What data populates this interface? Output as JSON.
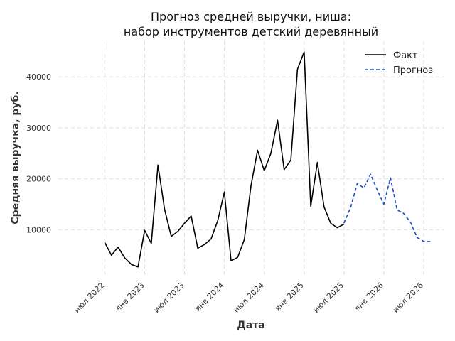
{
  "chart_data": {
    "type": "line",
    "title_line1": "Прогноз средней выручки, ниша:",
    "title_line2": "набор инструментов детский деревянный",
    "xlabel": "Дата",
    "ylabel": "Средняя выручка, руб.",
    "ylim": [
      1000,
      47000
    ],
    "xlim": [
      "2021-12",
      "2026-10"
    ],
    "grid": true,
    "legend_position": "top-right",
    "y_ticks": [
      10000,
      20000,
      30000,
      40000
    ],
    "x_ticks": [
      {
        "date": "2022-07",
        "label": "июл 2022"
      },
      {
        "date": "2023-01",
        "label": "янв 2023"
      },
      {
        "date": "2023-07",
        "label": "июл 2023"
      },
      {
        "date": "2024-01",
        "label": "янв 2024"
      },
      {
        "date": "2024-07",
        "label": "июл 2024"
      },
      {
        "date": "2025-01",
        "label": "янв 2025"
      },
      {
        "date": "2025-07",
        "label": "июл 2025"
      },
      {
        "date": "2026-01",
        "label": "янв 2026"
      },
      {
        "date": "2026-07",
        "label": "июл 2026"
      }
    ],
    "series": [
      {
        "name": "Факт",
        "color": "#000000",
        "style": "solid",
        "x": [
          "2022-07",
          "2022-08",
          "2022-09",
          "2022-10",
          "2022-11",
          "2022-12",
          "2023-01",
          "2023-02",
          "2023-03",
          "2023-04",
          "2023-05",
          "2023-06",
          "2023-07",
          "2023-08",
          "2023-09",
          "2023-10",
          "2023-11",
          "2023-12",
          "2024-01",
          "2024-02",
          "2024-03",
          "2024-04",
          "2024-05",
          "2024-06",
          "2024-07",
          "2024-08",
          "2024-09",
          "2024-10",
          "2024-11",
          "2024-12",
          "2025-01",
          "2025-02",
          "2025-03",
          "2025-04",
          "2025-05",
          "2025-06",
          "2025-07"
        ],
        "y": [
          7500,
          5000,
          6600,
          4500,
          3200,
          2700,
          9900,
          7300,
          22700,
          14000,
          8700,
          9700,
          11300,
          12700,
          6400,
          7100,
          8200,
          11800,
          17400,
          3900,
          4600,
          8100,
          18600,
          25600,
          21600,
          25000,
          31500,
          21800,
          23700,
          41500,
          44900,
          14600,
          23200,
          14500,
          11300,
          10400,
          11100
        ]
      },
      {
        "name": "Прогноз",
        "color": "#1f4fc4",
        "style": "dashed",
        "x": [
          "2025-07",
          "2025-08",
          "2025-09",
          "2025-10",
          "2025-11",
          "2025-12",
          "2026-01",
          "2026-02",
          "2026-03",
          "2026-04",
          "2026-05",
          "2026-06",
          "2026-07",
          "2026-08"
        ],
        "y": [
          11300,
          14400,
          19100,
          18200,
          20900,
          17800,
          15000,
          20200,
          13900,
          13200,
          11500,
          8500,
          7700,
          7700
        ]
      }
    ]
  }
}
